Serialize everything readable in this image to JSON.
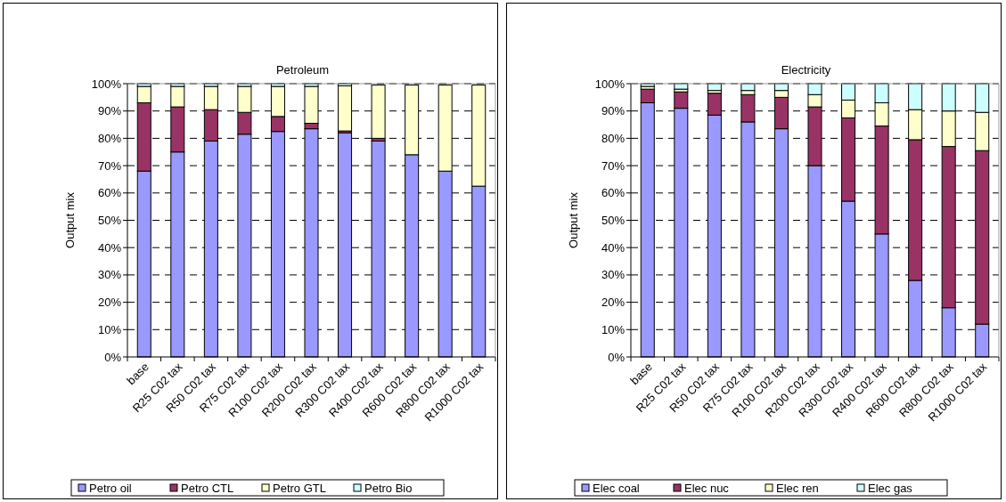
{
  "chart_data": [
    {
      "type": "bar",
      "title": "Petroleum",
      "ylabel": "Output mix",
      "stacked": true,
      "grid": "y",
      "legend": "bottom",
      "categories": [
        "base",
        "R25 C02 tax",
        "R50 C02 tax",
        "R75 C02 tax",
        "R100 C02 tax",
        "R200 C02 tax",
        "R300 C02 tax",
        "R400 C02 tax",
        "R600 C02 tax",
        "R800 C02 tax",
        "R1000 C02 tax"
      ],
      "ylim": [
        0,
        100
      ],
      "yticks": [
        {
          "value": 0,
          "label": "0%"
        },
        {
          "value": 10,
          "label": "10%"
        },
        {
          "value": 20,
          "label": "20%"
        },
        {
          "value": 30,
          "label": "30%"
        },
        {
          "value": 40,
          "label": "40%"
        },
        {
          "value": 50,
          "label": "50%"
        },
        {
          "value": 60,
          "label": "60%"
        },
        {
          "value": 70,
          "label": "70%"
        },
        {
          "value": 80,
          "label": "80%"
        },
        {
          "value": 90,
          "label": "90%"
        },
        {
          "value": 100,
          "label": "100%"
        }
      ],
      "series": [
        {
          "name": "Petro oil",
          "color": "#9999ff",
          "values": [
            68,
            75,
            79,
            81.5,
            82.5,
            83.5,
            82,
            79,
            74,
            68,
            62.5
          ]
        },
        {
          "name": "Petro CTL",
          "color": "#993366",
          "values": [
            25,
            16.5,
            11.5,
            8,
            5.5,
            2,
            0.7,
            1,
            0,
            0,
            0
          ]
        },
        {
          "name": "Petro GTL",
          "color": "#ffffcc",
          "values": [
            6,
            7.5,
            8.5,
            9.5,
            11,
            13.5,
            16.5,
            19.5,
            25.5,
            31.5,
            37
          ]
        },
        {
          "name": "Petro Bio",
          "color": "#ccffff",
          "values": [
            1,
            1,
            1,
            1,
            1,
            1,
            0.8,
            null,
            null,
            null,
            null
          ]
        }
      ]
    },
    {
      "type": "bar",
      "title": "Electricity",
      "ylabel": "Output mix",
      "stacked": true,
      "grid": "y",
      "legend": "bottom",
      "categories": [
        "base",
        "R25 C02 tax",
        "R50 C02 tax",
        "R75 C02 tax",
        "R100 C02 tax",
        "R200 C02 tax",
        "R300 C02 tax",
        "R400 C02 tax",
        "R600 C02 tax",
        "R800 C02 tax",
        "R1000 C02 tax"
      ],
      "ylim": [
        0,
        100
      ],
      "yticks": [
        {
          "value": 0,
          "label": "0%"
        },
        {
          "value": 10,
          "label": "10%"
        },
        {
          "value": 20,
          "label": "20%"
        },
        {
          "value": 30,
          "label": "30%"
        },
        {
          "value": 40,
          "label": "40%"
        },
        {
          "value": 50,
          "label": "50%"
        },
        {
          "value": 60,
          "label": "60%"
        },
        {
          "value": 70,
          "label": "70%"
        },
        {
          "value": 80,
          "label": "80%"
        },
        {
          "value": 90,
          "label": "90%"
        },
        {
          "value": 100,
          "label": "100%"
        }
      ],
      "series": [
        {
          "name": "Elec coal",
          "color": "#9999ff",
          "values": [
            93,
            91,
            88.5,
            86,
            83.5,
            70,
            57,
            45,
            28,
            18,
            12
          ]
        },
        {
          "name": "Elec nuc",
          "color": "#993366",
          "values": [
            5,
            6,
            8,
            10,
            11.5,
            21.5,
            30.5,
            39.5,
            51.5,
            59,
            63.5
          ]
        },
        {
          "name": "Elec ren",
          "color": "#ffffcc",
          "values": [
            1,
            1,
            1,
            1.5,
            2.5,
            4.5,
            6.5,
            8.5,
            11,
            13,
            14
          ]
        },
        {
          "name": "Elec gas",
          "color": "#ccffff",
          "values": [
            1,
            2,
            2.5,
            2.5,
            2.5,
            4,
            6,
            7,
            9.5,
            10,
            10.5
          ]
        }
      ]
    }
  ]
}
